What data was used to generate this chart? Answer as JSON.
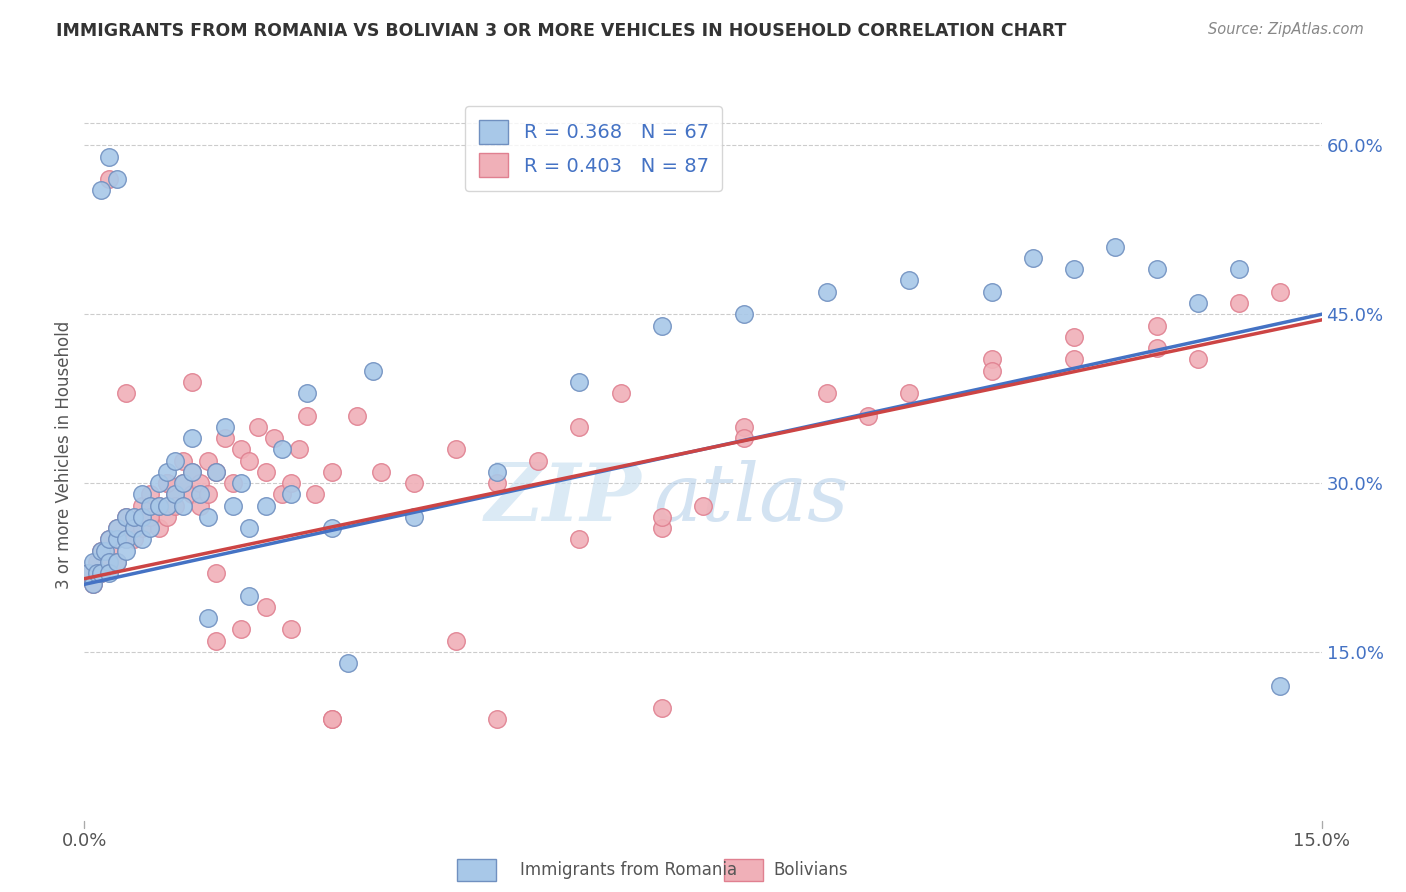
{
  "title": "IMMIGRANTS FROM ROMANIA VS BOLIVIAN 3 OR MORE VEHICLES IN HOUSEHOLD CORRELATION CHART",
  "source": "Source: ZipAtlas.com",
  "ylabel_label": "3 or more Vehicles in Household",
  "legend_label1": "Immigrants from Romania",
  "legend_label2": "Bolivians",
  "R1": "0.368",
  "N1": "67",
  "R2": "0.403",
  "N2": "87",
  "color_blue_fill": "#a8c8e8",
  "color_pink_fill": "#f0b0b8",
  "color_blue_edge": "#7090c0",
  "color_pink_edge": "#e08090",
  "color_blue_line": "#4472c4",
  "color_pink_line": "#cc4444",
  "color_text_blue": "#4472c4",
  "color_text_r": "#cc0000",
  "xlim": [
    0.0,
    0.15
  ],
  "ylim": [
    0.0,
    0.65
  ],
  "background_color": "#ffffff",
  "watermark_zip": "ZIP",
  "watermark_atlas": "atlas",
  "line1_x0": 0.0,
  "line1_y0": 0.21,
  "line1_x1": 0.15,
  "line1_y1": 0.45,
  "line2_x0": 0.0,
  "line2_y0": 0.215,
  "line2_x1": 0.15,
  "line2_y1": 0.445,
  "romania_x": [
    0.0005,
    0.001,
    0.001,
    0.0015,
    0.002,
    0.002,
    0.0025,
    0.003,
    0.003,
    0.003,
    0.004,
    0.004,
    0.004,
    0.005,
    0.005,
    0.005,
    0.006,
    0.006,
    0.007,
    0.007,
    0.007,
    0.008,
    0.008,
    0.009,
    0.009,
    0.01,
    0.01,
    0.011,
    0.011,
    0.012,
    0.012,
    0.013,
    0.013,
    0.014,
    0.015,
    0.016,
    0.017,
    0.018,
    0.019,
    0.02,
    0.022,
    0.024,
    0.027,
    0.03,
    0.032,
    0.04,
    0.05,
    0.06,
    0.07,
    0.08,
    0.09,
    0.1,
    0.11,
    0.115,
    0.12,
    0.125,
    0.13,
    0.135,
    0.14,
    0.145,
    0.002,
    0.003,
    0.004,
    0.015,
    0.02,
    0.025,
    0.035
  ],
  "romania_y": [
    0.22,
    0.23,
    0.21,
    0.22,
    0.24,
    0.22,
    0.24,
    0.23,
    0.25,
    0.22,
    0.25,
    0.23,
    0.26,
    0.25,
    0.27,
    0.24,
    0.26,
    0.27,
    0.27,
    0.25,
    0.29,
    0.28,
    0.26,
    0.28,
    0.3,
    0.28,
    0.31,
    0.29,
    0.32,
    0.3,
    0.28,
    0.31,
    0.34,
    0.29,
    0.27,
    0.31,
    0.35,
    0.28,
    0.3,
    0.26,
    0.28,
    0.33,
    0.38,
    0.26,
    0.14,
    0.27,
    0.31,
    0.39,
    0.44,
    0.45,
    0.47,
    0.48,
    0.47,
    0.5,
    0.49,
    0.51,
    0.49,
    0.46,
    0.49,
    0.12,
    0.56,
    0.59,
    0.57,
    0.18,
    0.2,
    0.29,
    0.4
  ],
  "bolivia_x": [
    0.0005,
    0.001,
    0.0015,
    0.002,
    0.002,
    0.003,
    0.003,
    0.003,
    0.004,
    0.004,
    0.005,
    0.005,
    0.006,
    0.006,
    0.007,
    0.007,
    0.008,
    0.008,
    0.009,
    0.009,
    0.01,
    0.01,
    0.011,
    0.011,
    0.012,
    0.012,
    0.013,
    0.013,
    0.014,
    0.014,
    0.015,
    0.015,
    0.016,
    0.017,
    0.018,
    0.019,
    0.02,
    0.021,
    0.022,
    0.023,
    0.024,
    0.025,
    0.026,
    0.027,
    0.028,
    0.03,
    0.033,
    0.036,
    0.04,
    0.045,
    0.05,
    0.055,
    0.06,
    0.065,
    0.07,
    0.075,
    0.08,
    0.09,
    0.1,
    0.11,
    0.12,
    0.13,
    0.14,
    0.145,
    0.003,
    0.005,
    0.008,
    0.01,
    0.013,
    0.016,
    0.019,
    0.025,
    0.03,
    0.045,
    0.06,
    0.07,
    0.08,
    0.095,
    0.11,
    0.12,
    0.13,
    0.135,
    0.022,
    0.016,
    0.03,
    0.05,
    0.07
  ],
  "bolivia_y": [
    0.22,
    0.21,
    0.23,
    0.22,
    0.24,
    0.24,
    0.23,
    0.25,
    0.23,
    0.26,
    0.25,
    0.27,
    0.26,
    0.25,
    0.26,
    0.28,
    0.27,
    0.29,
    0.28,
    0.26,
    0.27,
    0.3,
    0.29,
    0.28,
    0.3,
    0.32,
    0.29,
    0.31,
    0.3,
    0.28,
    0.32,
    0.29,
    0.31,
    0.34,
    0.3,
    0.33,
    0.32,
    0.35,
    0.31,
    0.34,
    0.29,
    0.3,
    0.33,
    0.36,
    0.29,
    0.31,
    0.36,
    0.31,
    0.3,
    0.33,
    0.3,
    0.32,
    0.35,
    0.38,
    0.26,
    0.28,
    0.35,
    0.38,
    0.38,
    0.41,
    0.41,
    0.42,
    0.46,
    0.47,
    0.57,
    0.38,
    0.27,
    0.3,
    0.39,
    0.22,
    0.17,
    0.17,
    0.09,
    0.16,
    0.25,
    0.27,
    0.34,
    0.36,
    0.4,
    0.43,
    0.44,
    0.41,
    0.19,
    0.16,
    0.09,
    0.09,
    0.1
  ]
}
